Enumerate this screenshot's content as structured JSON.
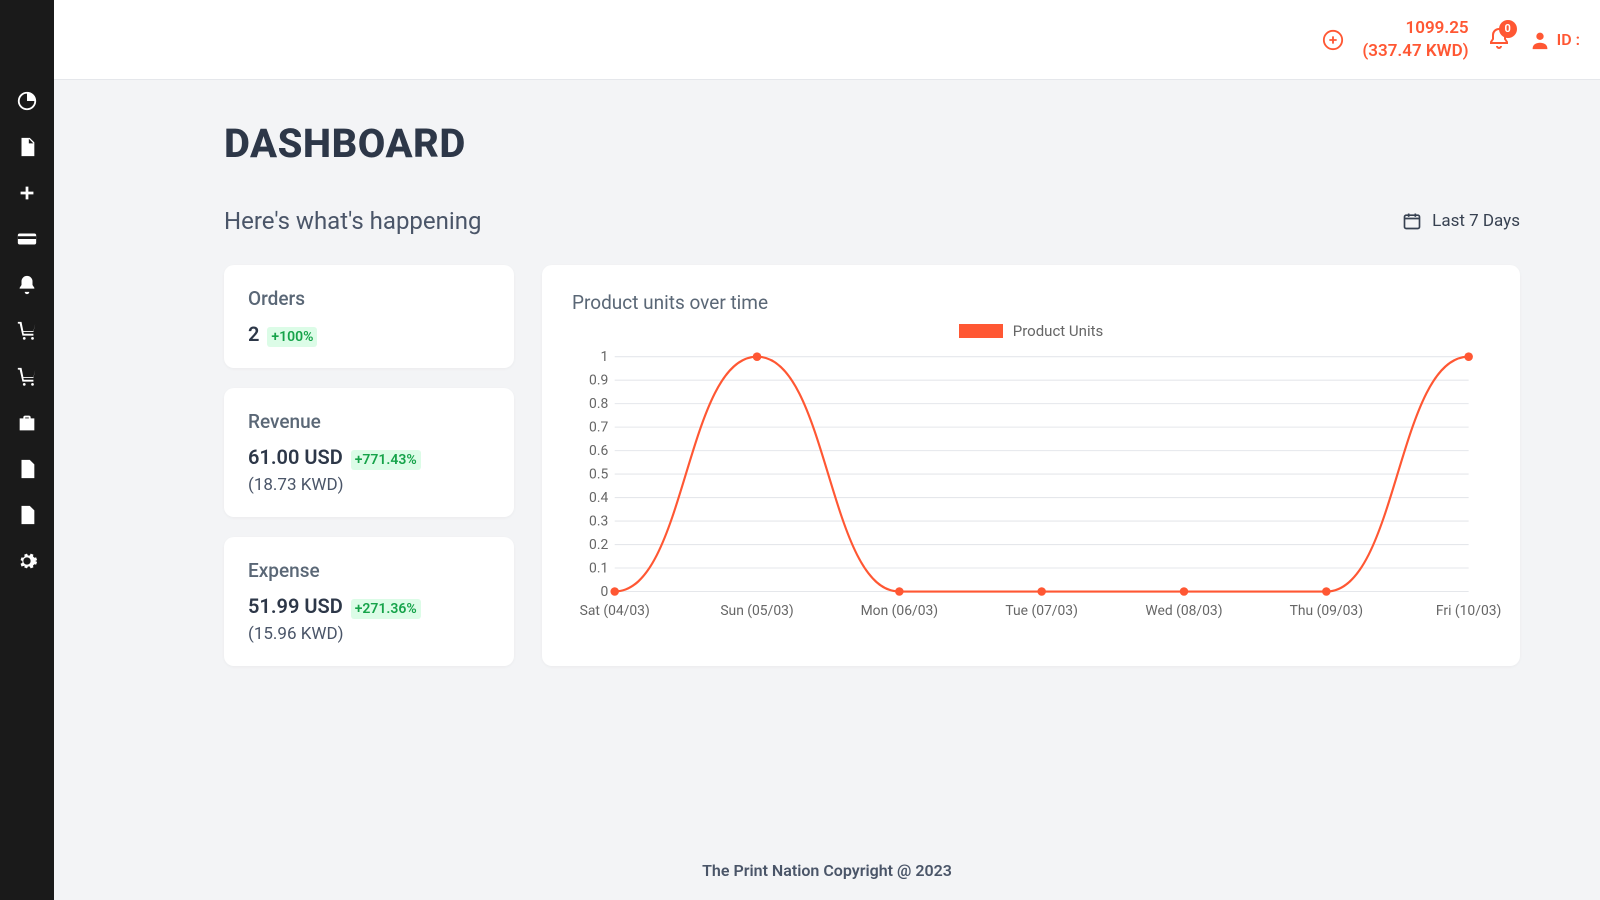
{
  "colors": {
    "accent": "#ff5733",
    "sidebar_bg": "#1a1a1a",
    "page_bg": "#f3f4f6",
    "card_bg": "#ffffff",
    "text_dark": "#2d3748",
    "text_muted": "#5a6776",
    "delta_pos": "#16a34a",
    "delta_pos_bg": "#dcfce7",
    "grid": "#e5e7eb"
  },
  "sidebar": {
    "items": [
      {
        "name": "dashboard-icon"
      },
      {
        "name": "invoice-icon"
      },
      {
        "name": "add-icon"
      },
      {
        "name": "card-icon"
      },
      {
        "name": "bell-icon"
      },
      {
        "name": "cart-icon"
      },
      {
        "name": "cart-plus-icon"
      },
      {
        "name": "briefcase-icon"
      },
      {
        "name": "file-icon"
      },
      {
        "name": "image-file-icon"
      },
      {
        "name": "settings-icon"
      }
    ]
  },
  "topbar": {
    "balance_line1": "1099.25",
    "balance_line2": "(337.47 KWD)",
    "notifications": "0",
    "user_label": "ID :"
  },
  "page": {
    "title": "DASHBOARD",
    "subtitle": "Here's what's happening",
    "period_label": "Last 7 Days"
  },
  "cards": {
    "orders": {
      "title": "Orders",
      "value": "2",
      "delta": "+100%"
    },
    "revenue": {
      "title": "Revenue",
      "value": "61.00 USD",
      "delta": "+771.43%",
      "sub": "(18.73 KWD)"
    },
    "expense": {
      "title": "Expense",
      "value": "51.99 USD",
      "delta": "+271.36%",
      "sub": "(15.96 KWD)"
    }
  },
  "chart": {
    "title": "Product units over time",
    "legend_label": "Product Units",
    "series_color": "#ff5733",
    "type": "line",
    "x_labels": [
      "Sat (04/03)",
      "Sun (05/03)",
      "Mon (06/03)",
      "Tue (07/03)",
      "Wed (08/03)",
      "Thu (09/03)",
      "Fri (10/03)"
    ],
    "y_ticks": [
      0,
      0.1,
      0.2,
      0.3,
      0.4,
      0.5,
      0.6,
      0.7,
      0.8,
      0.9,
      1.0
    ],
    "ylim": [
      0,
      1.0
    ],
    "values": [
      0,
      1,
      0,
      0,
      0,
      0,
      1
    ],
    "grid_color": "#e5e7eb",
    "background_color": "#ffffff",
    "marker_radius": 4,
    "line_width": 2,
    "label_fontsize": 13
  },
  "footer": {
    "text": "The Print Nation Copyright @ 2023"
  }
}
